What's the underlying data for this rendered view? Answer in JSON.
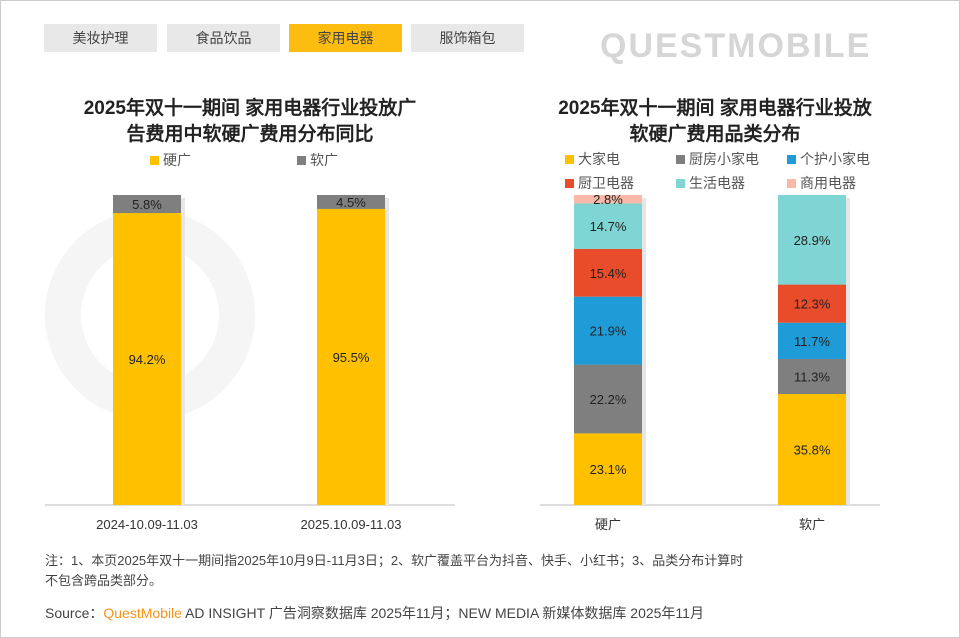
{
  "tabs": [
    {
      "label": "美妆护理",
      "active": false
    },
    {
      "label": "食品饮品",
      "active": false
    },
    {
      "label": "家用电器",
      "active": true
    },
    {
      "label": "服饰箱包",
      "active": false
    }
  ],
  "watermark": "QUESTMOBILE",
  "colors": {
    "yellow": "#FFC000",
    "gray": "#7F7F7F",
    "blue": "#1F9BD7",
    "red": "#E84C2A",
    "teal": "#7FD5D3",
    "salmon": "#F9B9A8",
    "accent": "#FDBD10",
    "brand": "#F7941D"
  },
  "chart_data": [
    {
      "type": "bar",
      "stacked": true,
      "title_line1": "2025年双十一期间 家用电器行业投放广",
      "title_line2": "告费用中软硬广费用分布同比",
      "categories": [
        "2024-10.09-11.03",
        "2025.10.09-11.03"
      ],
      "series": [
        {
          "name": "硬广",
          "values": [
            94.2,
            95.5
          ],
          "color": "#FFC000"
        },
        {
          "name": "软广",
          "values": [
            5.8,
            4.5
          ],
          "color": "#7F7F7F"
        }
      ],
      "unit": "%",
      "ylim": [
        0,
        100
      ],
      "legend": "top"
    },
    {
      "type": "bar",
      "stacked": true,
      "title_line1": "2025年双十一期间 家用电器行业投放",
      "title_line2": "软硬广费用品类分布",
      "categories": [
        "硬广",
        "软广"
      ],
      "series": [
        {
          "name": "大家电",
          "values": [
            23.1,
            35.8
          ],
          "color": "#FFC000"
        },
        {
          "name": "厨房小家电",
          "values": [
            22.2,
            11.3
          ],
          "color": "#7F7F7F"
        },
        {
          "name": "个护小家电",
          "values": [
            21.9,
            11.7
          ],
          "color": "#1F9BD7"
        },
        {
          "name": "厨卫电器",
          "values": [
            15.4,
            12.3
          ],
          "color": "#E84C2A"
        },
        {
          "name": "生活电器",
          "values": [
            14.7,
            28.9
          ],
          "color": "#7FD5D3"
        },
        {
          "name": "商用电器",
          "values": [
            2.8,
            null
          ],
          "color": "#F9B9A8"
        }
      ],
      "unit": "%",
      "ylim": [
        0,
        100
      ],
      "legend": "top"
    }
  ],
  "note_line1": "注：1、本页2025年双十一期间指2025年10月9日-11月3日；2、软广覆盖平台为抖音、快手、小红书；3、品类分布计算时",
  "note_line2": "不包含跨品类部分。",
  "source_label": "Source：",
  "source_brand": "QuestMobile",
  "source_rest": " AD INSIGHT 广告洞察数据库 2025年11月；NEW MEDIA 新媒体数据库 2025年11月"
}
